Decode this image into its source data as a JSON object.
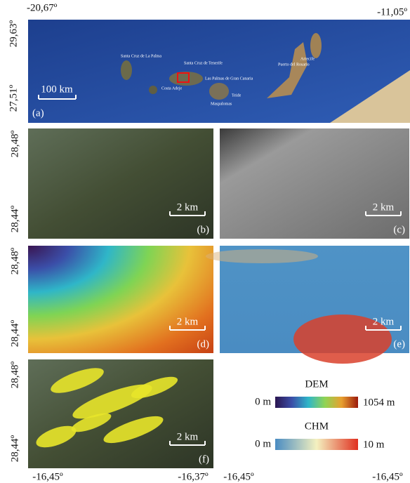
{
  "map_extent": {
    "west": "-20,67º",
    "east": "-11,05º",
    "north": "29,63º",
    "south": "27,51º"
  },
  "overview": {
    "label": "(a)",
    "scale_bar": "100 km",
    "places": [
      "Santa Cruz de La Palma",
      "Santa Cruz de Tenerife",
      "Las Palmas de Gran Canaria",
      "Puerto del Rosario",
      "Arrecife",
      "Costa Adeje",
      "Teide",
      "Maspalomas"
    ]
  },
  "panels": [
    {
      "label": "(b)",
      "scale_bar": "2 km"
    },
    {
      "label": "(c)",
      "scale_bar": "2 km"
    },
    {
      "label": "(d)",
      "scale_bar": "2 km"
    },
    {
      "label": "(e)",
      "scale_bar": "2 km"
    },
    {
      "label": "(f)",
      "scale_bar": "2 km"
    }
  ],
  "row_latitudes": {
    "north": "28,48º",
    "south": "28,44º"
  },
  "bottom_longitudes": [
    "-16,45º",
    "-16,37º",
    "-16,45º",
    "-16,45º"
  ],
  "legend": {
    "dem": {
      "title": "DEM",
      "min": "0 m",
      "max": "1054 m"
    },
    "chm": {
      "title": "CHM",
      "min": "0 m",
      "max": "10 m"
    }
  }
}
